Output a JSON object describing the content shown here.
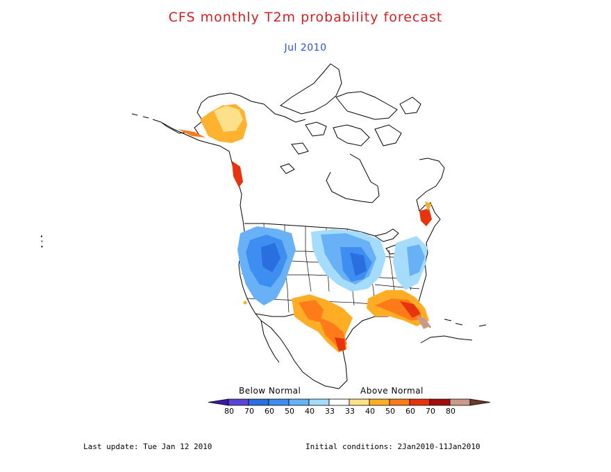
{
  "header": {
    "title": "CFS monthly T2m probability forecast",
    "subtitle": "Jul 2010"
  },
  "legend": {
    "below_label": "Below Normal",
    "above_label": "Above Normal",
    "ticks": [
      "80",
      "70",
      "60",
      "50",
      "40",
      "33",
      "33",
      "40",
      "50",
      "60",
      "70",
      "80"
    ],
    "colors": {
      "below": [
        "#3a1aa6",
        "#5b45d8",
        "#2a6fe0",
        "#3d8ef0",
        "#69b1f7",
        "#a6dcfb"
      ],
      "neutral": "#ffffff",
      "above": [
        "#ffe08a",
        "#ffad25",
        "#ff7b1a",
        "#e8340e",
        "#a50d0d",
        "#c89a8c",
        "#6e3a2a"
      ]
    }
  },
  "footer": {
    "last_update": "Last update: Tue Jan 12 2010",
    "initial_conditions": "Initial conditions: 2Jan2010-11Jan2010"
  },
  "side_mark": "∙ ∘ •"
}
